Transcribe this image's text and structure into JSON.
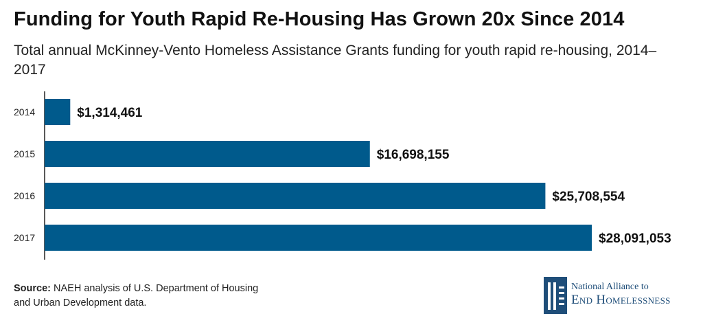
{
  "header": {
    "title": "Funding for Youth Rapid Re-Housing Has Grown 20x Since 2014",
    "subtitle": "Total annual McKinney-Vento Homeless Assistance Grants funding for youth rapid re-housing, 2014–2017"
  },
  "chart_data": {
    "type": "bar",
    "orientation": "horizontal",
    "categories": [
      "2014",
      "2015",
      "2016",
      "2017"
    ],
    "values": [
      1314461,
      16698155,
      25708554,
      28091053
    ],
    "value_labels": [
      "$1,314,461",
      "$16,698,155",
      "$25,708,554",
      "$28,091,053"
    ],
    "xlim": [
      0,
      28091053
    ],
    "grid": false,
    "bar_color": "#005a8c"
  },
  "footer": {
    "source_label": "Source:",
    "source_text": " NAEH analysis of U.S. Department of Housing and Urban Development data."
  },
  "logo": {
    "line1": "National Alliance to",
    "line2": "End Homelessness",
    "color": "#1f4e79"
  }
}
